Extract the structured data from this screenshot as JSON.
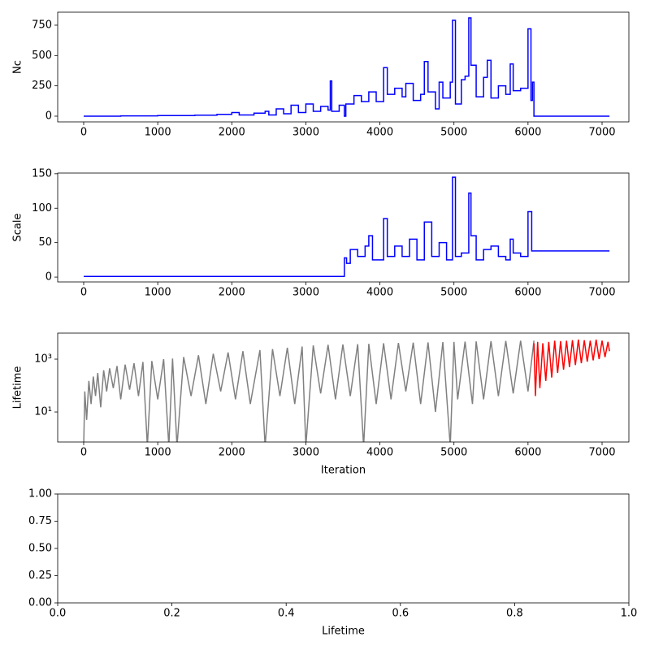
{
  "chart_data": [
    {
      "type": "line",
      "drawstyle": "steps-post",
      "ylabel": "Nc",
      "xlim": [
        -351,
        7362
      ],
      "ylim": [
        -47,
        857
      ],
      "xticks": [
        0,
        1000,
        2000,
        3000,
        4000,
        5000,
        6000,
        7000
      ],
      "yticks": [
        0,
        250,
        500,
        750
      ],
      "series": [
        {
          "color": "#0000ff",
          "x": [
            0,
            500,
            1000,
            1500,
            1800,
            2000,
            2100,
            2300,
            2450,
            2500,
            2600,
            2700,
            2800,
            2900,
            3000,
            3100,
            3200,
            3300,
            3330,
            3350,
            3450,
            3520,
            3540,
            3650,
            3750,
            3850,
            3950,
            4050,
            4100,
            4200,
            4300,
            4350,
            4450,
            4550,
            4600,
            4650,
            4750,
            4800,
            4850,
            4950,
            4980,
            5020,
            5100,
            5150,
            5200,
            5230,
            5300,
            5400,
            5450,
            5500,
            5600,
            5700,
            5760,
            5800,
            5900,
            6000,
            6040,
            6060,
            6080,
            7100
          ],
          "values": [
            0,
            2,
            5,
            8,
            15,
            30,
            10,
            25,
            40,
            10,
            60,
            20,
            90,
            30,
            100,
            40,
            80,
            50,
            290,
            40,
            90,
            0,
            100,
            170,
            120,
            200,
            120,
            400,
            180,
            230,
            160,
            270,
            130,
            180,
            450,
            200,
            60,
            280,
            150,
            280,
            790,
            100,
            300,
            330,
            810,
            420,
            160,
            320,
            460,
            150,
            250,
            180,
            430,
            210,
            230,
            720,
            130,
            280,
            0,
            0
          ]
        }
      ]
    },
    {
      "type": "line",
      "drawstyle": "steps-post",
      "ylabel": "Scale",
      "xlim": [
        -351,
        7362
      ],
      "ylim": [
        -7,
        151
      ],
      "xticks": [
        0,
        1000,
        2000,
        3000,
        4000,
        5000,
        6000,
        7000
      ],
      "yticks": [
        0,
        50,
        100,
        150
      ],
      "series": [
        {
          "color": "#0000ff",
          "x": [
            0,
            3500,
            3520,
            3550,
            3600,
            3700,
            3800,
            3850,
            3900,
            4050,
            4100,
            4200,
            4300,
            4400,
            4500,
            4600,
            4700,
            4800,
            4900,
            4980,
            5020,
            5100,
            5200,
            5230,
            5300,
            5400,
            5500,
            5600,
            5700,
            5760,
            5800,
            5900,
            6000,
            6050,
            7100
          ],
          "values": [
            1,
            1,
            28,
            20,
            40,
            30,
            45,
            60,
            25,
            85,
            30,
            45,
            30,
            55,
            25,
            80,
            30,
            50,
            25,
            145,
            30,
            35,
            122,
            60,
            25,
            40,
            45,
            30,
            25,
            55,
            35,
            30,
            95,
            38,
            38
          ]
        }
      ]
    },
    {
      "type": "line",
      "yscale": "log",
      "ylabel": "Lifetime",
      "xlabel": "Iteration",
      "xlim": [
        -351,
        7362
      ],
      "ylim": [
        0.73,
        9660
      ],
      "xticks": [
        0,
        1000,
        2000,
        3000,
        4000,
        5000,
        6000,
        7000
      ],
      "yticks": [
        {
          "value": 10,
          "label": "10¹"
        },
        {
          "value": 1000,
          "label": "10³"
        }
      ],
      "series": [
        {
          "color": "#808080",
          "x": [
            0,
            15,
            40,
            70,
            100,
            130,
            160,
            190,
            230,
            270,
            310,
            350,
            400,
            450,
            500,
            560,
            620,
            680,
            740,
            800,
            860,
            920,
            1000,
            1080,
            1150,
            1200,
            1260,
            1350,
            1450,
            1550,
            1650,
            1750,
            1850,
            1950,
            2050,
            2150,
            2250,
            2380,
            2450,
            2550,
            2650,
            2750,
            2850,
            2950,
            3000,
            3100,
            3200,
            3300,
            3400,
            3500,
            3600,
            3700,
            3780,
            3850,
            3950,
            4050,
            4150,
            4250,
            4350,
            4450,
            4550,
            4650,
            4750,
            4850,
            4950,
            5000,
            5050,
            5150,
            5250,
            5300,
            5400,
            5500,
            5600,
            5700,
            5800,
            5900,
            6000,
            6080
          ],
          "values": [
            0.5,
            60,
            5,
            150,
            20,
            220,
            40,
            300,
            15,
            380,
            60,
            450,
            80,
            550,
            30,
            620,
            70,
            700,
            40,
            780,
            0.5,
            850,
            30,
            1000,
            0.5,
            1050,
            0.5,
            1200,
            40,
            1400,
            20,
            1600,
            60,
            1800,
            30,
            2000,
            20,
            2200,
            0.5,
            2400,
            40,
            2700,
            20,
            3000,
            0.5,
            3300,
            50,
            3500,
            30,
            3600,
            40,
            3700,
            0.5,
            3800,
            20,
            4000,
            30,
            4100,
            60,
            4200,
            20,
            4300,
            10,
            4400,
            0.5,
            4500,
            30,
            4600,
            20,
            4700,
            30,
            4800,
            40,
            4900,
            50,
            5000,
            60,
            5000
          ]
        },
        {
          "color": "#ff0000",
          "x": [
            6080,
            6100,
            6130,
            6160,
            6200,
            6240,
            6280,
            6320,
            6360,
            6400,
            6440,
            6480,
            6520,
            6560,
            6600,
            6640,
            6680,
            6720,
            6760,
            6800,
            6840,
            6880,
            6920,
            6960,
            7000,
            7040,
            7080,
            7100
          ],
          "values": [
            4000,
            40,
            4500,
            80,
            4000,
            150,
            4500,
            200,
            5000,
            300,
            4800,
            400,
            5000,
            500,
            5200,
            600,
            5500,
            700,
            5200,
            800,
            5000,
            900,
            5500,
            1000,
            5000,
            1200,
            4500,
            2000
          ]
        }
      ]
    },
    {
      "type": "line",
      "xlabel": "Lifetime",
      "xlim": [
        0,
        1
      ],
      "ylim": [
        0,
        1
      ],
      "xticks": [
        {
          "value": 0,
          "label": "0.0"
        },
        {
          "value": 0.2,
          "label": "0.2"
        },
        {
          "value": 0.4,
          "label": "0.4"
        },
        {
          "value": 0.6,
          "label": "0.6"
        },
        {
          "value": 0.8,
          "label": "0.8"
        },
        {
          "value": 1,
          "label": "1.0"
        }
      ],
      "yticks": [
        {
          "value": 0,
          "label": "0.00"
        },
        {
          "value": 0.25,
          "label": "0.25"
        },
        {
          "value": 0.5,
          "label": "0.50"
        },
        {
          "value": 0.75,
          "label": "0.75"
        },
        {
          "value": 1,
          "label": "1.00"
        }
      ],
      "series": []
    }
  ]
}
